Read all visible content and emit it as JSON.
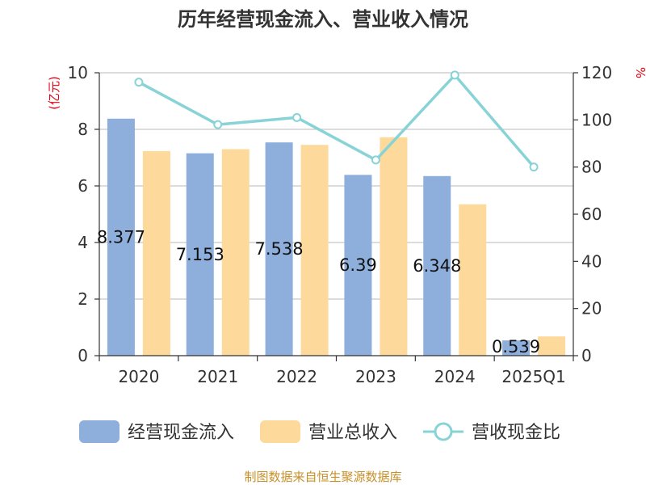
{
  "chart_data": {
    "type": "bar",
    "title": "历年经营现金流入、营业收入情况",
    "categories": [
      "2020",
      "2021",
      "2022",
      "2023",
      "2024",
      "2025Q1"
    ],
    "series": [
      {
        "name": "经营现金流入",
        "type": "bar",
        "axis": "left",
        "color": "#8eaedc",
        "values": [
          8.377,
          7.153,
          7.538,
          6.39,
          6.348,
          0.539
        ],
        "labels": [
          "8.377",
          "7.153",
          "7.538",
          "6.39",
          "6.348",
          "0.539"
        ]
      },
      {
        "name": "营业总收入",
        "type": "bar",
        "axis": "left",
        "color": "#fdd99b",
        "values": [
          7.23,
          7.3,
          7.45,
          7.72,
          5.35,
          0.68
        ]
      },
      {
        "name": "营收现金比",
        "type": "line",
        "axis": "right",
        "color": "#88d3d6",
        "values": [
          116,
          98,
          101,
          83,
          119,
          80
        ]
      }
    ],
    "left_axis": {
      "unit": "(亿元)",
      "min": 0,
      "max": 10,
      "ticks": [
        "0",
        "2",
        "4",
        "6",
        "8",
        "10"
      ]
    },
    "right_axis": {
      "unit": "%",
      "min": 0,
      "max": 120,
      "ticks": [
        "0",
        "20",
        "40",
        "60",
        "80",
        "100",
        "120"
      ]
    },
    "grid": true,
    "legend_position": "bottom"
  },
  "source": "制图数据来自恒生聚源数据库"
}
